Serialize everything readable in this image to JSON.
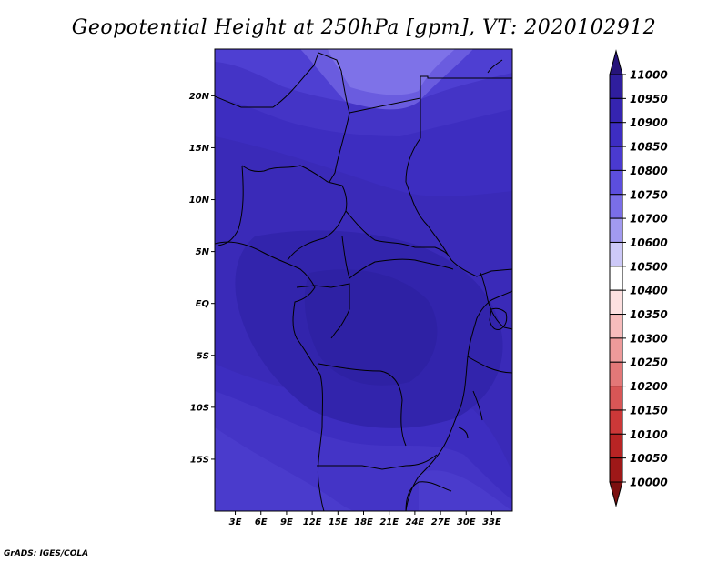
{
  "title": "Geopotential Height at 250hPa [gpm], VT: 2020102912",
  "credit": "GrADS: IGES/COLA",
  "map": {
    "lat_ticks": [
      "20N",
      "15N",
      "10N",
      "5N",
      "EQ",
      "5S",
      "10S",
      "15S"
    ],
    "lon_ticks": [
      "3E",
      "6E",
      "9E",
      "12E",
      "15E",
      "18E",
      "21E",
      "24E",
      "27E",
      "30E",
      "33E"
    ]
  },
  "colorbar": {
    "levels": [
      "11000",
      "10950",
      "10900",
      "10850",
      "10800",
      "10750",
      "10700",
      "10600",
      "10500",
      "10400",
      "10350",
      "10300",
      "10250",
      "10200",
      "10150",
      "10100",
      "10050",
      "10000"
    ],
    "colors": [
      "#26147a",
      "#2f1e9e",
      "#3524b0",
      "#3d2dc2",
      "#4a3ad0",
      "#5c4ede",
      "#7a6ee8",
      "#a29af0",
      "#cdc9f8",
      "#ffffff",
      "#fde0e0",
      "#f7bcbc",
      "#ee9a9a",
      "#e37878",
      "#d85656",
      "#cc3838",
      "#b82424",
      "#9e1818",
      "#7c1010"
    ]
  },
  "chart_data": {
    "type": "heatmap",
    "title": "Geopotential Height at 250hPa [gpm], VT: 2020102912",
    "units": "gpm",
    "x_ticks": [
      "3E",
      "6E",
      "9E",
      "12E",
      "15E",
      "18E",
      "21E",
      "24E",
      "27E",
      "30E",
      "33E"
    ],
    "y_ticks": [
      "20N",
      "15N",
      "10N",
      "5N",
      "EQ",
      "5S",
      "10S",
      "15S"
    ],
    "xlim": [
      0,
      35
    ],
    "ylim": [
      -20,
      25
    ],
    "colorbar_levels": [
      10000,
      10050,
      10100,
      10150,
      10200,
      10250,
      10300,
      10350,
      10400,
      10500,
      10600,
      10700,
      10750,
      10800,
      10850,
      10900,
      10950,
      11000
    ]
  }
}
